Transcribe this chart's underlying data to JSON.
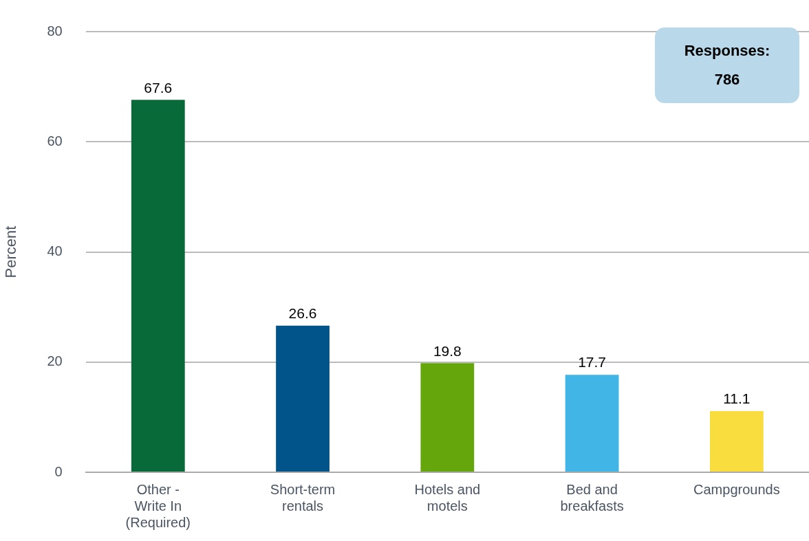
{
  "chart_data": {
    "type": "bar",
    "ylabel": "Percent",
    "categories": [
      "Other - Write In (Required)",
      "Short-term rentals",
      "Hotels and motels",
      "Bed and breakfasts",
      "Campgrounds"
    ],
    "values": [
      67.6,
      26.6,
      19.8,
      17.7,
      11.1
    ],
    "colors": [
      "#076a38",
      "#00548a",
      "#66a60d",
      "#41b6e6",
      "#f9dc3d"
    ],
    "ylim": [
      0,
      80
    ],
    "yticks": [
      0,
      20,
      40,
      60,
      80
    ],
    "grid": "y",
    "legend": false,
    "data_labels": true,
    "annotations": [
      "Responses: 786"
    ]
  }
}
